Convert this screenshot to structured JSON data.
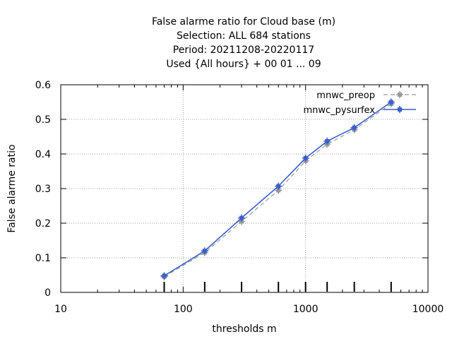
{
  "chart_data": {
    "type": "line",
    "title_lines": [
      "False alarme ratio  for Cloud base (m)",
      "Selection: ALL    684 stations",
      "Period: 20211208-20220117",
      "Used {All hours} + 00 01 ... 09"
    ],
    "xlabel": "thresholds m",
    "ylabel": "False alarme ratio",
    "x_scale": "log",
    "xlim": [
      10,
      10000
    ],
    "ylim": [
      0,
      0.6
    ],
    "x_ticks": [
      10,
      100,
      1000,
      10000
    ],
    "x_tick_labels": [
      "10",
      "100",
      "1000",
      "10000"
    ],
    "y_ticks": [
      0,
      0.1,
      0.2,
      0.3,
      0.4,
      0.5,
      0.6
    ],
    "y_tick_labels": [
      "0",
      "0.1",
      "0.2",
      "0.3",
      "0.4",
      "0.5",
      "0.6"
    ],
    "grid": true,
    "legend_position": "top-right",
    "x": [
      70,
      150,
      300,
      600,
      1000,
      1500,
      2500,
      5000
    ],
    "series": [
      {
        "name": "mnwc_preop",
        "color": "#999999",
        "dashed": true,
        "values": [
          0.045,
          0.115,
          0.205,
          0.295,
          0.38,
          0.428,
          0.47,
          0.545
        ]
      },
      {
        "name": "mnwc_pysurfex",
        "color": "#3a5fcd",
        "dashed": false,
        "values": [
          0.048,
          0.12,
          0.215,
          0.307,
          0.388,
          0.437,
          0.476,
          0.55
        ]
      }
    ],
    "bottom_tick_marks_x": [
      70,
      150,
      300,
      600,
      1000,
      1500,
      2500,
      5000
    ]
  }
}
